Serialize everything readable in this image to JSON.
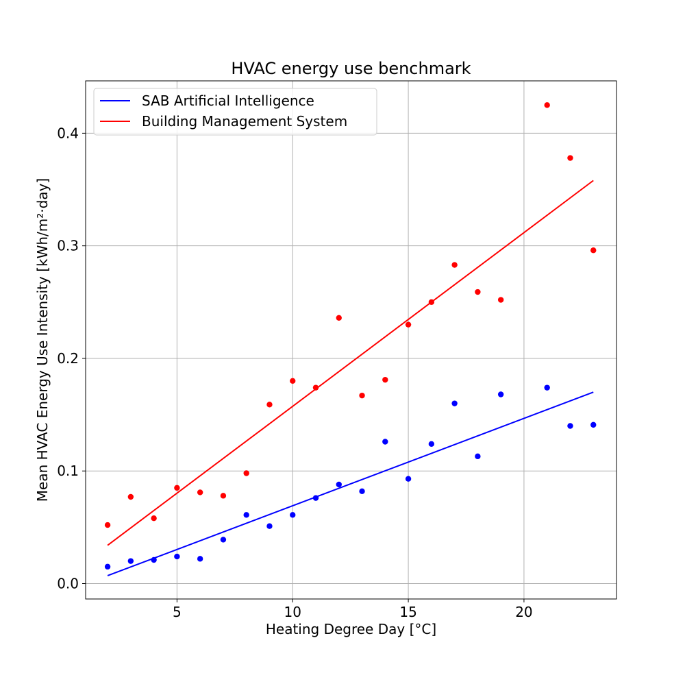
{
  "chart_data": {
    "type": "scatter",
    "title": "HVAC energy use benchmark",
    "xlabel": "Heating Degree Day [°C]",
    "ylabel": "Mean HVAC Energy Use Intensity [kWh/m²·day]",
    "xlim": [
      1.05,
      24.0
    ],
    "ylim": [
      -0.0137,
      0.4465
    ],
    "xticks": [
      5,
      10,
      15,
      20
    ],
    "yticks": [
      0.0,
      0.1,
      0.2,
      0.3,
      0.4
    ],
    "xtick_labels": [
      "5",
      "10",
      "15",
      "20"
    ],
    "ytick_labels": [
      "0.0",
      "0.1",
      "0.2",
      "0.3",
      "0.4"
    ],
    "grid": true,
    "legend_position": "upper-left",
    "series": [
      {
        "name": "SAB Artificial Intelligence",
        "color": "#0000ff",
        "points": [
          [
            2,
            0.015
          ],
          [
            3,
            0.02
          ],
          [
            4,
            0.021
          ],
          [
            5,
            0.024
          ],
          [
            6,
            0.022
          ],
          [
            7,
            0.039
          ],
          [
            8,
            0.061
          ],
          [
            9,
            0.051
          ],
          [
            10,
            0.061
          ],
          [
            11,
            0.076
          ],
          [
            12,
            0.088
          ],
          [
            13,
            0.082
          ],
          [
            14,
            0.126
          ],
          [
            15,
            0.093
          ],
          [
            16,
            0.124
          ],
          [
            17,
            0.16
          ],
          [
            18,
            0.113
          ],
          [
            19,
            0.168
          ],
          [
            21,
            0.174
          ],
          [
            22,
            0.14
          ],
          [
            23,
            0.141
          ]
        ],
        "trend_line": [
          [
            2,
            0.007
          ],
          [
            23,
            0.17
          ]
        ]
      },
      {
        "name": "Building Management System",
        "color": "#ff0000",
        "points": [
          [
            2,
            0.052
          ],
          [
            3,
            0.077
          ],
          [
            4,
            0.058
          ],
          [
            5,
            0.085
          ],
          [
            6,
            0.081
          ],
          [
            7,
            0.078
          ],
          [
            8,
            0.098
          ],
          [
            9,
            0.159
          ],
          [
            10,
            0.18
          ],
          [
            11,
            0.174
          ],
          [
            12,
            0.236
          ],
          [
            13,
            0.167
          ],
          [
            14,
            0.181
          ],
          [
            15,
            0.23
          ],
          [
            16,
            0.25
          ],
          [
            17,
            0.283
          ],
          [
            18,
            0.259
          ],
          [
            19,
            0.252
          ],
          [
            21,
            0.425
          ],
          [
            22,
            0.378
          ],
          [
            23,
            0.296
          ]
        ],
        "trend_line": [
          [
            2,
            0.034
          ],
          [
            23,
            0.358
          ]
        ]
      }
    ]
  }
}
